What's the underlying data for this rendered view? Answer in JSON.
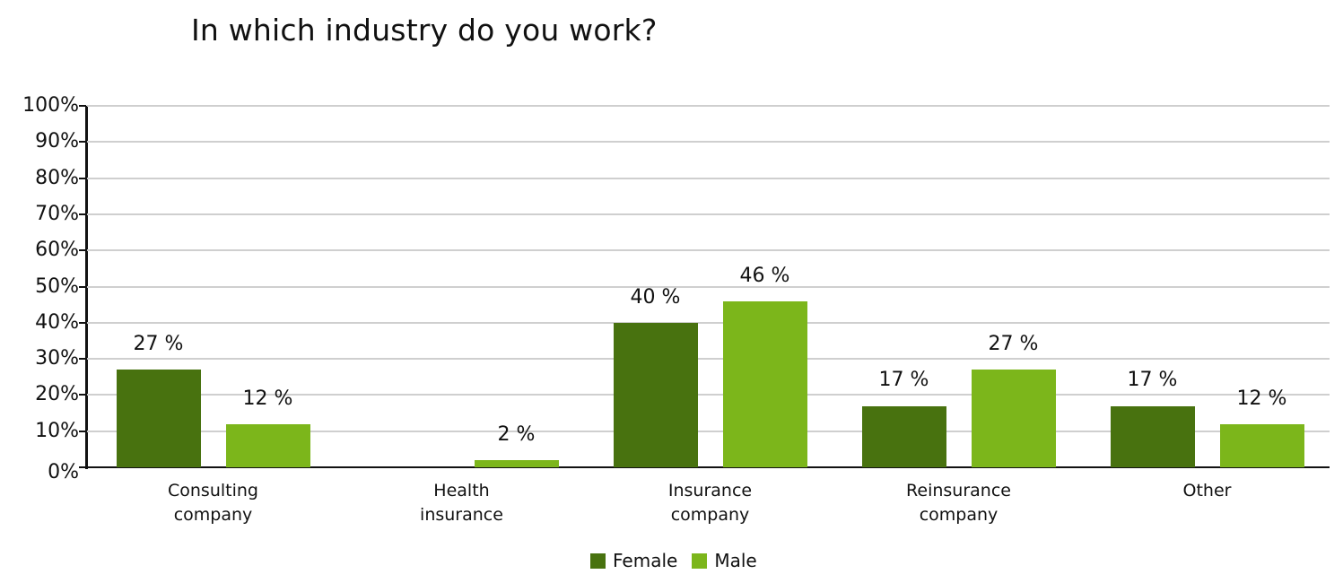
{
  "chart_data": {
    "type": "bar",
    "title": "In which industry do you work?",
    "xlabel": "",
    "ylabel": "",
    "ylim": [
      0,
      100
    ],
    "y_ticks": [
      "0%",
      "10%",
      "20%",
      "30%",
      "40%",
      "50%",
      "60%",
      "70%",
      "80%",
      "90%",
      "100%"
    ],
    "grid": true,
    "legend_position": "bottom",
    "categories": [
      "Consulting company",
      "Health insurance",
      "Insurance company",
      "Reinsurance company",
      "Other"
    ],
    "category_lines": [
      [
        "Consulting",
        "company"
      ],
      [
        "Health",
        "insurance"
      ],
      [
        "Insurance",
        "company"
      ],
      [
        "Reinsurance",
        "company"
      ],
      [
        "Other",
        ""
      ]
    ],
    "series": [
      {
        "name": "Female",
        "color": "#48720f",
        "values": [
          27,
          0,
          40,
          17,
          17
        ],
        "labels": [
          "27 %",
          "",
          "40 %",
          "17 %",
          "17 %"
        ]
      },
      {
        "name": "Male",
        "color": "#7cb61b",
        "values": [
          12,
          2,
          46,
          27,
          12
        ],
        "labels": [
          "12 %",
          "2 %",
          "46 %",
          "27 %",
          "12 %"
        ]
      }
    ]
  }
}
